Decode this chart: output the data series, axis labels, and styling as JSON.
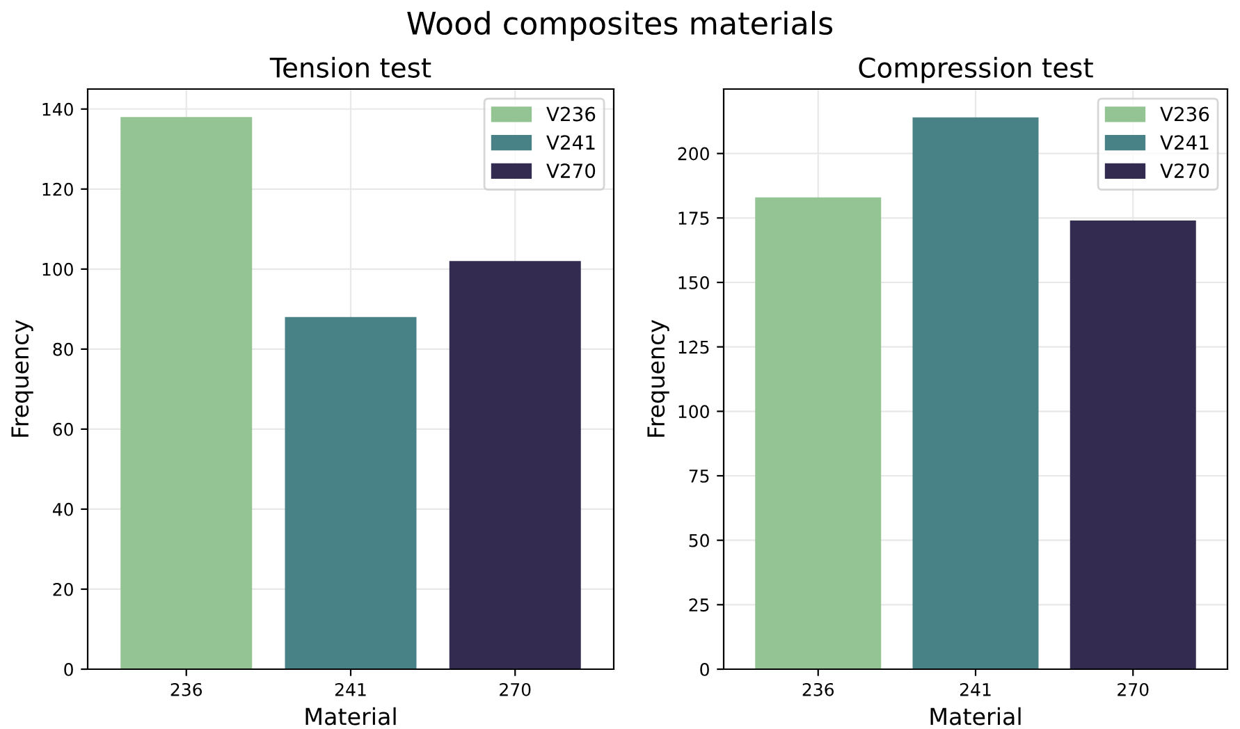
{
  "chart_data": [
    {
      "type": "bar",
      "title": "Tension test",
      "xlabel": "Material",
      "ylabel": "Frequency",
      "categories": [
        "236",
        "241",
        "270"
      ],
      "annotations": [
        "Wood composites materials"
      ],
      "series": [
        {
          "name": "V236",
          "color": "#94c493",
          "values": [
            138,
            null,
            null
          ]
        },
        {
          "name": "V241",
          "color": "#498286",
          "values": [
            null,
            88,
            null
          ]
        },
        {
          "name": "V270",
          "color": "#332c50",
          "values": [
            null,
            null,
            102
          ]
        }
      ],
      "ylim": [
        0,
        145
      ],
      "yticks": [
        0,
        20,
        40,
        60,
        80,
        100,
        120,
        140
      ],
      "grid": true,
      "legend": "top right"
    },
    {
      "type": "bar",
      "title": "Compression test",
      "xlabel": "Material",
      "ylabel": "Frequency",
      "categories": [
        "236",
        "241",
        "270"
      ],
      "series": [
        {
          "name": "V236",
          "color": "#94c493",
          "values": [
            183,
            null,
            null
          ]
        },
        {
          "name": "V241",
          "color": "#498286",
          "values": [
            null,
            214,
            null
          ]
        },
        {
          "name": "V270",
          "color": "#332c50",
          "values": [
            null,
            null,
            174
          ]
        }
      ],
      "ylim": [
        0,
        225
      ],
      "yticks": [
        0,
        25,
        50,
        75,
        100,
        125,
        150,
        175,
        200
      ],
      "grid": true,
      "legend": "top right"
    }
  ]
}
